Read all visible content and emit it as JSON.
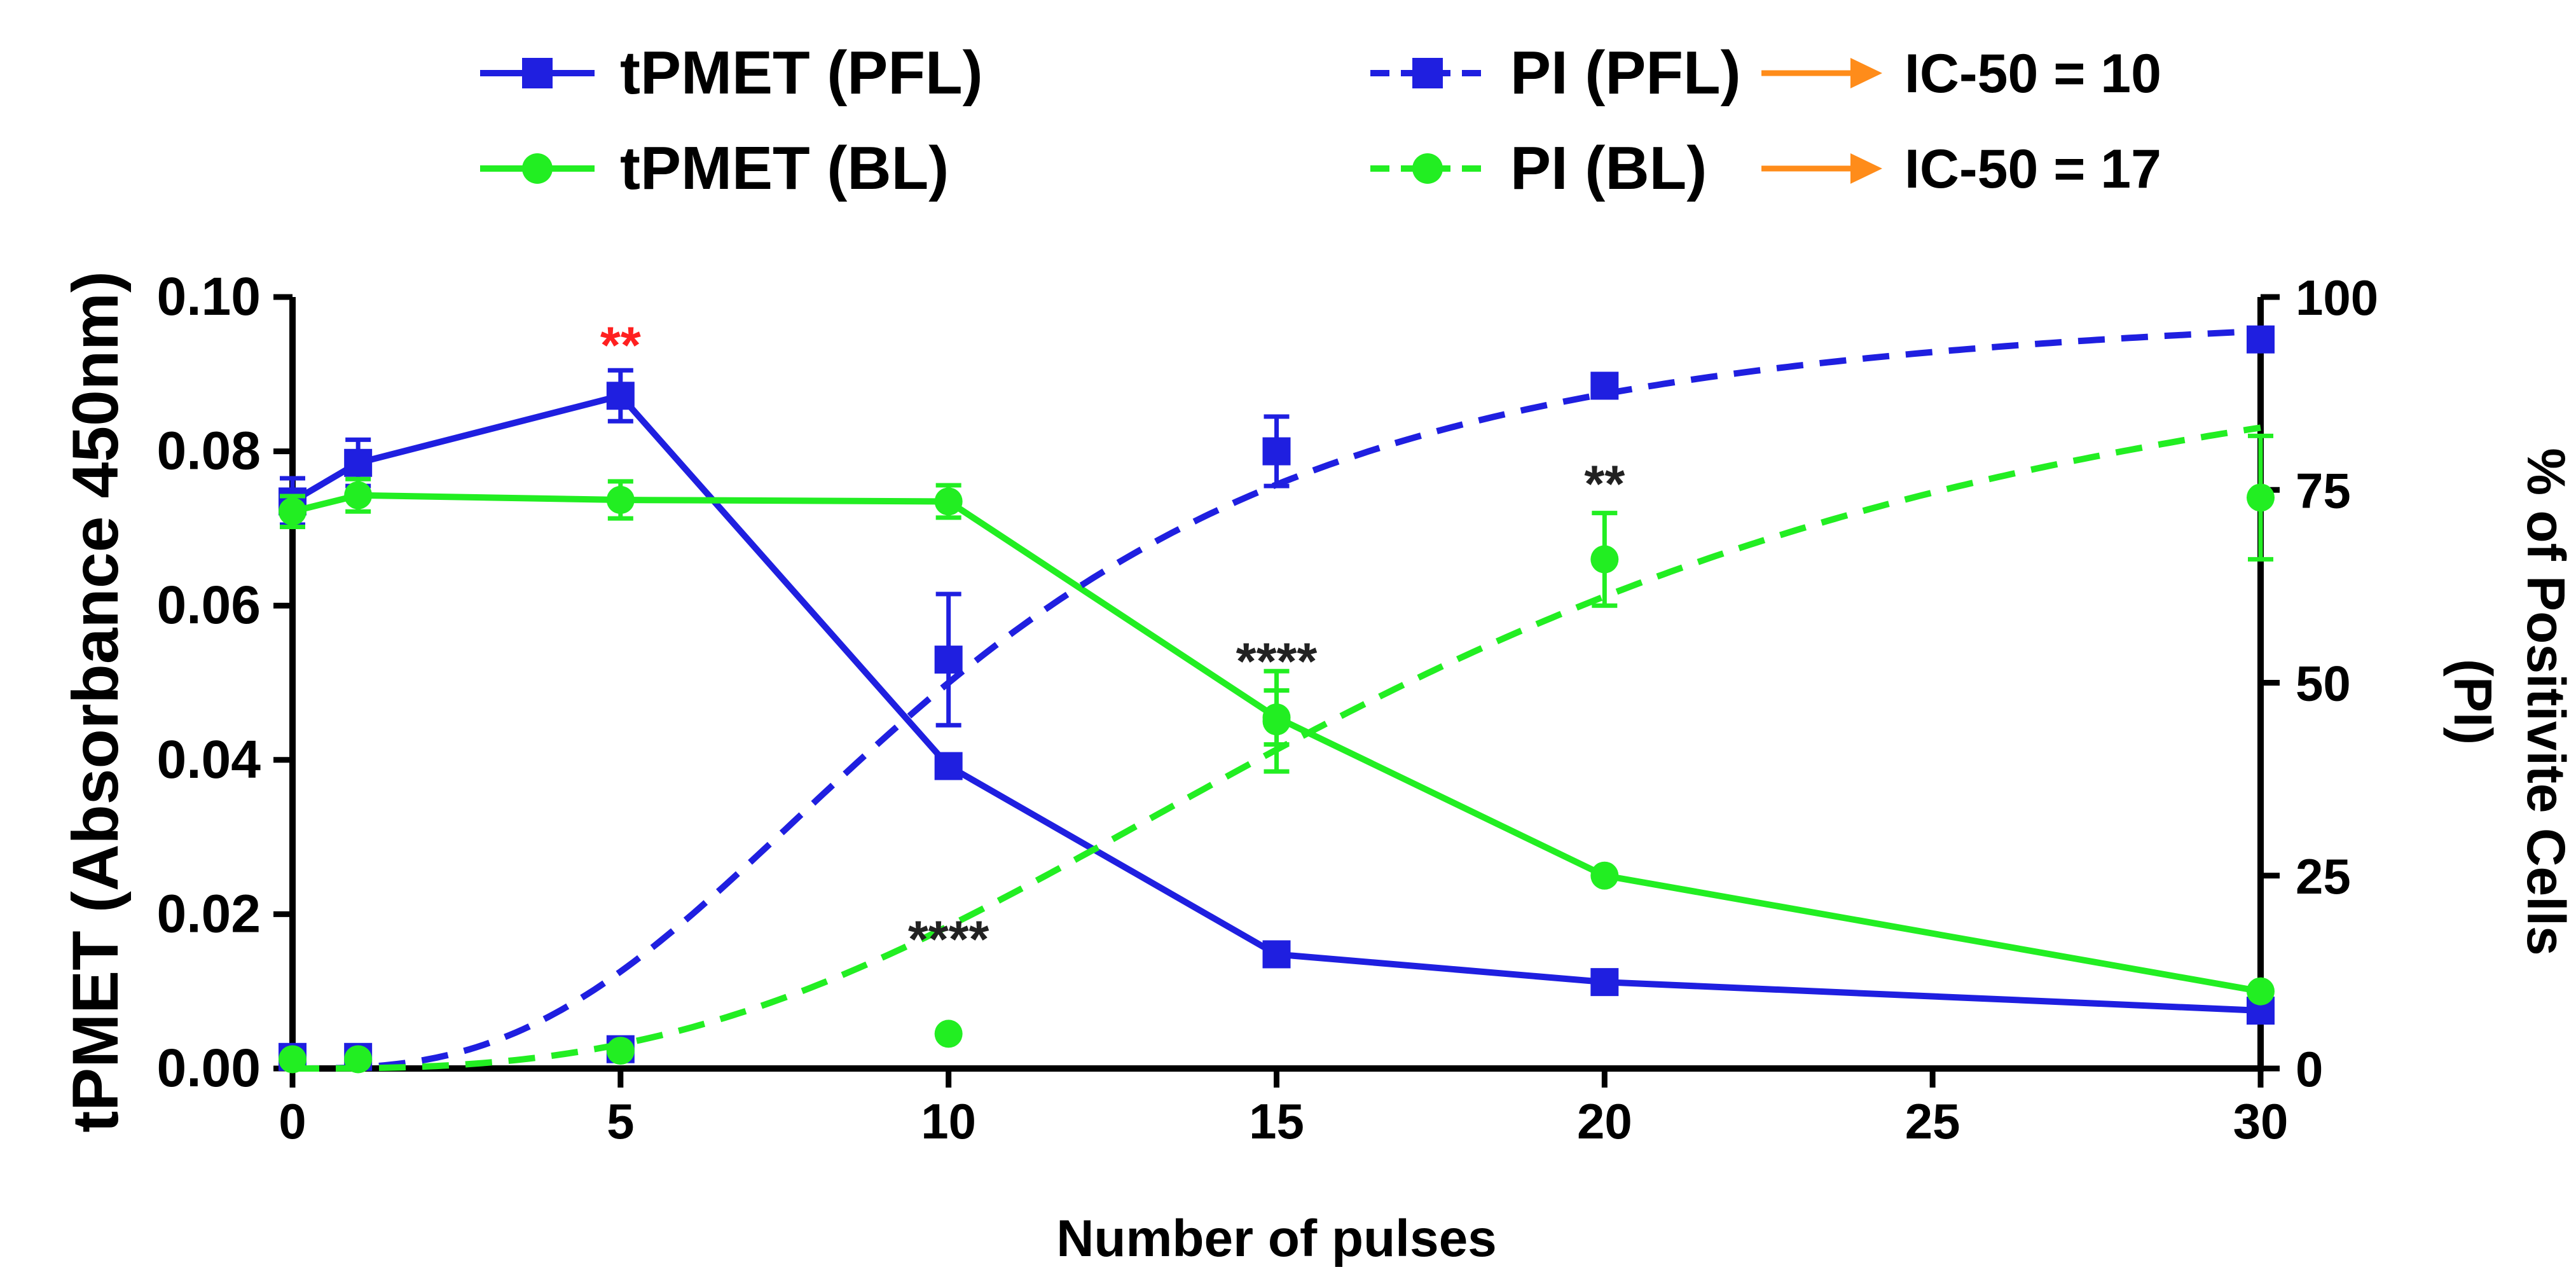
{
  "chart_data": {
    "type": "line",
    "xlabel": "Number of pulses",
    "ylabel_left": "tPMET (Absorbance 450nm)",
    "ylabel_right": [
      "% of Positivite Cells",
      "(PI)"
    ],
    "xlim": [
      0,
      30
    ],
    "ylim_left": [
      0,
      0.1
    ],
    "ylim_right": [
      0,
      100
    ],
    "x_ticks": [
      "0",
      "5",
      "10",
      "15",
      "20",
      "25",
      "30"
    ],
    "y_ticks_left": [
      "0.00",
      "0.02",
      "0.04",
      "0.06",
      "0.08",
      "0.10"
    ],
    "y_ticks_right": [
      "0",
      "25",
      "50",
      "75",
      "100"
    ],
    "grid": false,
    "legend_position": "top",
    "colors": {
      "pfl": "#1f1fe0",
      "bl": "#22ee22",
      "arrow": "#ff8c1a",
      "star_red": "#ff2020",
      "star_dark": "#222222"
    },
    "series": [
      {
        "name": "tPMET (PFL)",
        "axis": "left",
        "style": "solid",
        "marker": "square",
        "color": "#1f1fe0",
        "x": [
          0,
          1,
          5,
          10,
          15,
          20,
          30
        ],
        "y": [
          0.0735,
          0.0785,
          0.0872,
          0.0392,
          0.0148,
          0.0112,
          0.0075
        ],
        "err": [
          0.003,
          0.003,
          0.0033,
          0,
          0,
          0,
          0
        ]
      },
      {
        "name": "tPMET (BL)",
        "axis": "left",
        "style": "solid",
        "marker": "circle",
        "color": "#22ee22",
        "x": [
          0,
          1,
          5,
          10,
          15,
          20,
          30
        ],
        "y": [
          0.0722,
          0.0743,
          0.0737,
          0.0735,
          0.0455,
          0.025,
          0.01
        ],
        "err": [
          0.002,
          0.0021,
          0.0024,
          0.0021,
          0.0035,
          0,
          0
        ]
      },
      {
        "name": "PI (PFL)",
        "axis": "right",
        "style": "dashed",
        "marker": "square",
        "color": "#1f1fe0",
        "x": [
          0,
          1,
          5,
          10,
          15,
          20,
          30
        ],
        "points": [
          1.5,
          1.5,
          2.5,
          53,
          80,
          88.5,
          94.5
        ],
        "err": [
          0,
          0,
          0,
          8.5,
          4.5,
          0,
          0
        ],
        "fit_ic50": 10
      },
      {
        "name": "PI (BL)",
        "axis": "right",
        "style": "dashed",
        "marker": "circle",
        "color": "#22ee22",
        "x": [
          0,
          1,
          5,
          10,
          15,
          20,
          30
        ],
        "points": [
          1.2,
          1.2,
          2.3,
          4.5,
          45,
          66,
          74
        ],
        "err": [
          0,
          0,
          0,
          0,
          6.5,
          6,
          8
        ],
        "fit_ic50": 17
      }
    ],
    "legend": [
      {
        "label": "tPMET (PFL)",
        "color": "#1f1fe0",
        "style": "solid",
        "marker": "square"
      },
      {
        "label": "tPMET (BL)",
        "color": "#22ee22",
        "style": "solid",
        "marker": "circle"
      },
      {
        "label": "PI (PFL)",
        "color": "#1f1fe0",
        "style": "dashed",
        "marker": "square"
      },
      {
        "label": "PI (BL)",
        "color": "#22ee22",
        "style": "dashed",
        "marker": "circle"
      },
      {
        "label": "IC-50 = 10",
        "color": "#ff8c1a",
        "style": "arrow"
      },
      {
        "label": "IC-50 = 17",
        "color": "#ff8c1a",
        "style": "arrow"
      }
    ],
    "annotations": [
      {
        "text": "**",
        "x": 5,
        "y_left": 0.0935,
        "color": "#ff2020"
      },
      {
        "text": "**",
        "x": 20,
        "y_left": 0.0755,
        "color": "#222222"
      },
      {
        "text": "****",
        "x": 15,
        "y_left": 0.0525,
        "color": "#222222"
      },
      {
        "text": "****",
        "x": 10,
        "y_left": 0.0165,
        "color": "#222222"
      }
    ]
  }
}
